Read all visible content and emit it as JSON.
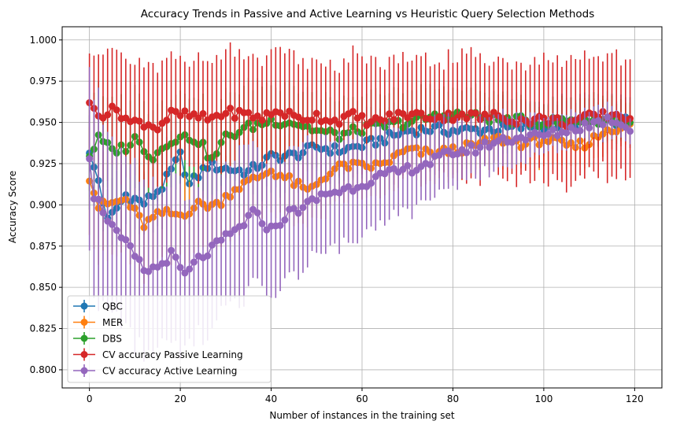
{
  "chart_data": {
    "type": "line",
    "title": "Accuracy Trends in Passive and Active Learning vs Heuristic Query Selection Methods",
    "xlabel": "Number of instances in the training set",
    "ylabel": "Accuracy Score",
    "xlim": [
      -6,
      126
    ],
    "ylim": [
      0.789,
      1.008
    ],
    "xticks": [
      0,
      20,
      40,
      60,
      80,
      100,
      120
    ],
    "yticks": [
      0.8,
      0.825,
      0.85,
      0.875,
      0.9,
      0.925,
      0.95,
      0.975,
      1.0
    ],
    "xtick_labels": [
      "0",
      "20",
      "40",
      "60",
      "80",
      "100",
      "120"
    ],
    "ytick_labels": [
      "0.800",
      "0.825",
      "0.850",
      "0.875",
      "0.900",
      "0.925",
      "0.950",
      "0.975",
      "1.000"
    ],
    "grid": true,
    "legend_position": "lower-left",
    "error_bars": true,
    "series": [
      {
        "name": "QBC",
        "color": "#1f77b4",
        "anchors": [
          [
            0,
            0.93
          ],
          [
            2,
            0.915
          ],
          [
            4,
            0.89
          ],
          [
            8,
            0.906
          ],
          [
            12,
            0.901
          ],
          [
            16,
            0.911
          ],
          [
            20,
            0.93
          ],
          [
            22,
            0.912
          ],
          [
            26,
            0.924
          ],
          [
            30,
            0.922
          ],
          [
            35,
            0.92
          ],
          [
            40,
            0.929
          ],
          [
            45,
            0.93
          ],
          [
            50,
            0.935
          ],
          [
            55,
            0.933
          ],
          [
            60,
            0.936
          ],
          [
            65,
            0.94
          ],
          [
            70,
            0.945
          ],
          [
            75,
            0.946
          ],
          [
            80,
            0.945
          ],
          [
            90,
            0.946
          ],
          [
            100,
            0.948
          ],
          [
            110,
            0.95
          ],
          [
            119,
            0.951
          ]
        ],
        "err_anchors": [
          [
            0,
            0.02
          ],
          [
            30,
            0.022
          ],
          [
            60,
            0.018
          ],
          [
            90,
            0.016
          ],
          [
            119,
            0.014
          ]
        ]
      },
      {
        "name": "MER",
        "color": "#ff7f0e",
        "anchors": [
          [
            0,
            0.917
          ],
          [
            2,
            0.899
          ],
          [
            8,
            0.903
          ],
          [
            12,
            0.888
          ],
          [
            16,
            0.895
          ],
          [
            20,
            0.894
          ],
          [
            24,
            0.9
          ],
          [
            28,
            0.9
          ],
          [
            32,
            0.91
          ],
          [
            36,
            0.915
          ],
          [
            40,
            0.921
          ],
          [
            44,
            0.915
          ],
          [
            48,
            0.908
          ],
          [
            52,
            0.918
          ],
          [
            56,
            0.924
          ],
          [
            60,
            0.923
          ],
          [
            64,
            0.924
          ],
          [
            70,
            0.933
          ],
          [
            75,
            0.931
          ],
          [
            80,
            0.933
          ],
          [
            85,
            0.936
          ],
          [
            90,
            0.94
          ],
          [
            96,
            0.937
          ],
          [
            100,
            0.94
          ],
          [
            106,
            0.935
          ],
          [
            110,
            0.938
          ],
          [
            114,
            0.946
          ],
          [
            119,
            0.948
          ]
        ],
        "err_anchors": [
          [
            0,
            0.035
          ],
          [
            30,
            0.025
          ],
          [
            60,
            0.02
          ],
          [
            90,
            0.015
          ],
          [
            119,
            0.012
          ]
        ]
      },
      {
        "name": "DBS",
        "color": "#2ca02c",
        "anchors": [
          [
            0,
            0.93
          ],
          [
            2,
            0.94
          ],
          [
            5,
            0.933
          ],
          [
            8,
            0.935
          ],
          [
            10,
            0.94
          ],
          [
            14,
            0.929
          ],
          [
            18,
            0.94
          ],
          [
            22,
            0.941
          ],
          [
            24,
            0.939
          ],
          [
            27,
            0.927
          ],
          [
            30,
            0.941
          ],
          [
            35,
            0.947
          ],
          [
            40,
            0.951
          ],
          [
            45,
            0.95
          ],
          [
            50,
            0.945
          ],
          [
            55,
            0.942
          ],
          [
            60,
            0.946
          ],
          [
            65,
            0.948
          ],
          [
            70,
            0.95
          ],
          [
            75,
            0.953
          ],
          [
            80,
            0.955
          ],
          [
            90,
            0.952
          ],
          [
            100,
            0.95
          ],
          [
            110,
            0.952
          ],
          [
            119,
            0.951
          ]
        ],
        "err_anchors": [
          [
            0,
            0.03
          ],
          [
            30,
            0.025
          ],
          [
            60,
            0.02
          ],
          [
            90,
            0.015
          ],
          [
            119,
            0.012
          ]
        ]
      },
      {
        "name": "CV accuracy Passive Learning",
        "color": "#d62728",
        "anchors": [
          [
            0,
            0.96
          ],
          [
            3,
            0.955
          ],
          [
            6,
            0.958
          ],
          [
            9,
            0.95
          ],
          [
            12,
            0.95
          ],
          [
            15,
            0.947
          ],
          [
            18,
            0.955
          ],
          [
            22,
            0.954
          ],
          [
            26,
            0.952
          ],
          [
            30,
            0.956
          ],
          [
            34,
            0.955
          ],
          [
            38,
            0.953
          ],
          [
            42,
            0.957
          ],
          [
            46,
            0.952
          ],
          [
            50,
            0.954
          ],
          [
            54,
            0.951
          ],
          [
            58,
            0.954
          ],
          [
            62,
            0.95
          ],
          [
            66,
            0.953
          ],
          [
            70,
            0.955
          ],
          [
            74,
            0.954
          ],
          [
            78,
            0.953
          ],
          [
            82,
            0.955
          ],
          [
            86,
            0.953
          ],
          [
            90,
            0.954
          ],
          [
            95,
            0.951
          ],
          [
            100,
            0.952
          ],
          [
            105,
            0.95
          ],
          [
            110,
            0.953
          ],
          [
            115,
            0.955
          ],
          [
            119,
            0.953
          ]
        ],
        "err_anchors": [
          [
            0,
            0.035
          ],
          [
            60,
            0.035
          ],
          [
            119,
            0.035
          ]
        ]
      },
      {
        "name": "CV accuracy Active Learning",
        "color": "#9467bd",
        "anchors": [
          [
            0,
            0.93
          ],
          [
            1,
            0.906
          ],
          [
            3,
            0.897
          ],
          [
            6,
            0.882
          ],
          [
            9,
            0.873
          ],
          [
            12,
            0.86
          ],
          [
            15,
            0.862
          ],
          [
            18,
            0.87
          ],
          [
            21,
            0.857
          ],
          [
            24,
            0.867
          ],
          [
            27,
            0.873
          ],
          [
            30,
            0.88
          ],
          [
            33,
            0.886
          ],
          [
            36,
            0.895
          ],
          [
            40,
            0.885
          ],
          [
            44,
            0.895
          ],
          [
            48,
            0.9
          ],
          [
            52,
            0.907
          ],
          [
            56,
            0.909
          ],
          [
            60,
            0.913
          ],
          [
            64,
            0.917
          ],
          [
            68,
            0.92
          ],
          [
            72,
            0.923
          ],
          [
            76,
            0.927
          ],
          [
            80,
            0.932
          ],
          [
            85,
            0.934
          ],
          [
            90,
            0.939
          ],
          [
            95,
            0.941
          ],
          [
            100,
            0.942
          ],
          [
            105,
            0.945
          ],
          [
            110,
            0.949
          ],
          [
            115,
            0.952
          ],
          [
            119,
            0.947
          ]
        ],
        "err_anchors": [
          [
            0,
            0.06
          ],
          [
            20,
            0.05
          ],
          [
            40,
            0.04
          ],
          [
            60,
            0.03
          ],
          [
            80,
            0.02
          ],
          [
            100,
            0.012
          ],
          [
            119,
            0.008
          ]
        ]
      }
    ]
  }
}
